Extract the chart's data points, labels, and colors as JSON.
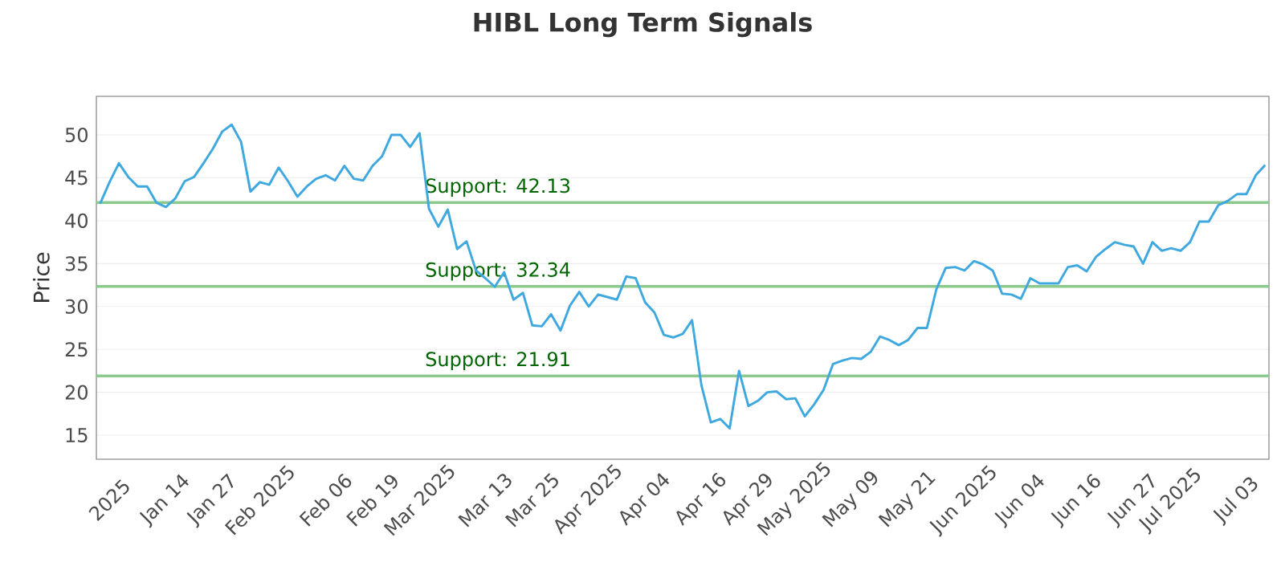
{
  "chart_data": {
    "type": "line",
    "title": "HIBL Long Term Signals",
    "ylabel": "Price",
    "categories": [
      null,
      "2025",
      null,
      null,
      null,
      null,
      null,
      "Jan 14",
      null,
      null,
      null,
      null,
      "Jan 27",
      null,
      null,
      null,
      null,
      "Feb 2025",
      null,
      null,
      null,
      null,
      null,
      null,
      "Feb 06",
      null,
      null,
      null,
      null,
      "Feb 19",
      null,
      null,
      null,
      null,
      "Mar 2025",
      null,
      null,
      null,
      null,
      null,
      null,
      "Mar 13",
      null,
      null,
      null,
      null,
      "Mar 25",
      null,
      null,
      null,
      null,
      null,
      "Apr 2025",
      null,
      null,
      null,
      null,
      null,
      "Apr 04",
      null,
      null,
      null,
      null,
      null,
      "Apr 16",
      null,
      null,
      null,
      null,
      "Apr 29",
      null,
      null,
      null,
      null,
      "May 2025",
      null,
      null,
      null,
      null,
      null,
      "May 09",
      null,
      null,
      null,
      null,
      null,
      "May 21",
      null,
      null,
      null,
      null,
      null,
      "Jun 2025",
      null,
      null,
      null,
      null,
      null,
      "Jun 04",
      null,
      null,
      null,
      null,
      null,
      "Jun 16",
      null,
      null,
      null,
      null,
      null,
      "Jun 27",
      null,
      null,
      null,
      "Jul 2025",
      null,
      null,
      null,
      null,
      null,
      null,
      "Jul 03",
      null,
      null,
      null
    ],
    "series": [
      {
        "color": "#3fa9df",
        "values": [
          42.0,
          44.5,
          46.7,
          45.1,
          44.0,
          44.0,
          42.1,
          41.6,
          42.6,
          44.6,
          45.1,
          46.7,
          48.4,
          50.4,
          51.2,
          49.2,
          43.4,
          44.5,
          44.2,
          46.2,
          44.6,
          42.8,
          44.0,
          44.9,
          45.3,
          44.7,
          46.4,
          44.9,
          44.7,
          46.4,
          47.5,
          50.0,
          50.0,
          48.6,
          50.2,
          41.4,
          39.3,
          41.3,
          36.7,
          37.6,
          34.2,
          33.3,
          32.3,
          34.0,
          30.8,
          31.6,
          27.8,
          27.7,
          29.1,
          27.2,
          30.1,
          31.7,
          30.0,
          31.4,
          31.1,
          30.8,
          33.5,
          33.3,
          30.5,
          29.3,
          26.7,
          26.4,
          26.8,
          28.4,
          20.8,
          16.5,
          16.9,
          15.8,
          22.5,
          18.4,
          19.0,
          20.0,
          20.1,
          19.2,
          19.3,
          17.2,
          18.6,
          20.3,
          23.3,
          23.7,
          24.0,
          23.9,
          24.7,
          26.5,
          26.1,
          25.5,
          26.1,
          27.5,
          27.5,
          32.0,
          34.5,
          34.6,
          34.2,
          35.3,
          34.9,
          34.2,
          31.5,
          31.4,
          30.9,
          33.3,
          32.7,
          32.7,
          32.7,
          34.6,
          34.8,
          34.1,
          35.8,
          36.7,
          37.5,
          37.2,
          37.0,
          35.0,
          37.5,
          36.5,
          36.8,
          36.5,
          37.5,
          39.9,
          39.9,
          41.8,
          42.3,
          43.1,
          43.1,
          45.3,
          46.5
        ]
      }
    ],
    "ylim": [
      12.2,
      54.5
    ],
    "yticks": [
      15,
      20,
      25,
      30,
      35,
      40,
      45,
      50
    ],
    "grid": "y",
    "ref_lines": [
      {
        "axis": "y",
        "value": 42.13,
        "label": "Support: 42.13",
        "color": "#8cc98c"
      },
      {
        "axis": "y",
        "value": 32.34,
        "label": "Support: 32.34",
        "color": "#8cc98c"
      },
      {
        "axis": "y",
        "value": 21.91,
        "label": "Support: 21.91",
        "color": "#8cc98c"
      }
    ]
  }
}
